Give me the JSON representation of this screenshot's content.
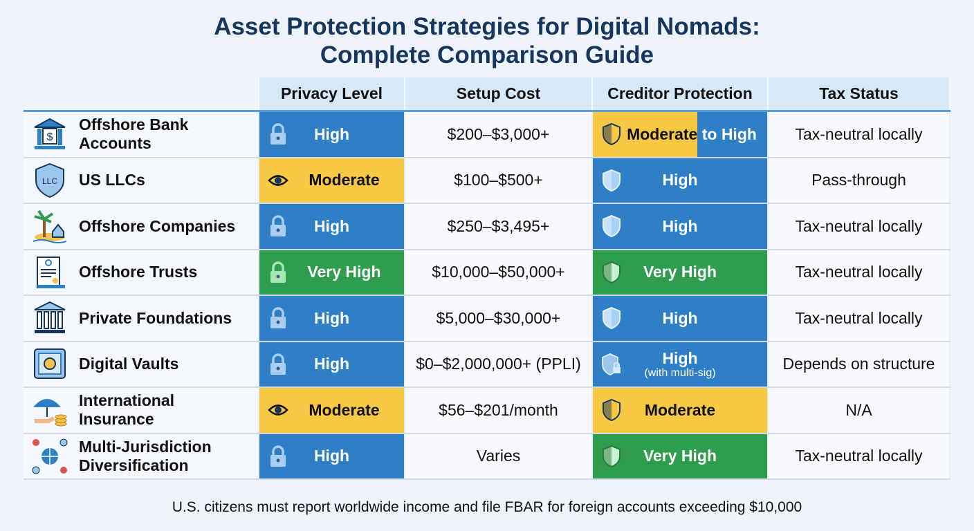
{
  "title_line1": "Asset Protection Strategies for Digital Nomads:",
  "title_line2": "Complete Comparison Guide",
  "headers": [
    "Privacy Level",
    "Setup Cost",
    "Creditor Protection",
    "Tax Status"
  ],
  "colors": {
    "blue": "#2e7fc5",
    "yellow": "#f7c843",
    "green": "#2f9d4e",
    "title": "#17365d"
  },
  "rows": [
    {
      "name": "Offshore Bank Accounts",
      "icon": "bank-icon",
      "privacy": "High",
      "privacy_color": "blue",
      "privacy_icon": "lock-icon",
      "cost": "$200–$3,000+",
      "creditor_a": "Moderate",
      "creditor_b": "to High",
      "creditor_color": "split",
      "creditor_icon": "shield-icon",
      "tax": "Tax-neutral locally"
    },
    {
      "name": "US LLCs",
      "icon": "llc-shield-icon",
      "privacy": "Moderate",
      "privacy_color": "yellow",
      "privacy_icon": "eye-icon",
      "cost": "$100–$500+",
      "creditor_a": "High",
      "creditor_color": "blue",
      "creditor_icon": "shield-icon",
      "tax": "Pass-through"
    },
    {
      "name": "Offshore Companies",
      "icon": "island-icon",
      "privacy": "High",
      "privacy_color": "blue",
      "privacy_icon": "lock-icon",
      "cost": "$250–$3,495+",
      "creditor_a": "High",
      "creditor_color": "blue",
      "creditor_icon": "shield-icon",
      "tax": "Tax-neutral locally"
    },
    {
      "name": "Offshore Trusts",
      "icon": "document-scroll-icon",
      "privacy": "Very High",
      "privacy_color": "green",
      "privacy_icon": "lock-icon",
      "cost": "$10,000–$50,000+",
      "creditor_a": "Very High",
      "creditor_color": "green",
      "creditor_icon": "shield-icon",
      "tax": "Tax-neutral locally"
    },
    {
      "name": "Private Foundations",
      "icon": "institution-icon",
      "privacy": "High",
      "privacy_color": "blue",
      "privacy_icon": "lock-icon",
      "cost": "$5,000–$30,000+",
      "creditor_a": "High",
      "creditor_color": "blue",
      "creditor_icon": "shield-icon",
      "tax": "Tax-neutral locally"
    },
    {
      "name": "Digital Vaults",
      "icon": "vault-icon",
      "privacy": "High",
      "privacy_color": "blue",
      "privacy_icon": "lock-icon",
      "cost": "$0–$2,000,000+ (PPLI)",
      "creditor_a": "High",
      "creditor_sub": "(with multi-sig)",
      "creditor_color": "blue",
      "creditor_icon": "shield-lock-icon",
      "tax": "Depends on structure"
    },
    {
      "name": "International Insurance",
      "icon": "umbrella-coins-icon",
      "privacy": "Moderate",
      "privacy_color": "yellow",
      "privacy_icon": "eye-icon",
      "cost": "$56–$201/month",
      "creditor_a": "Moderate",
      "creditor_color": "yellow",
      "creditor_icon": "shield-icon",
      "tax": "N/A"
    },
    {
      "name": "Multi-Jurisdiction Diversification",
      "icon": "globe-flags-icon",
      "privacy": "High",
      "privacy_color": "blue",
      "privacy_icon": "lock-icon",
      "cost": "Varies",
      "creditor_a": "Very High",
      "creditor_color": "green",
      "creditor_icon": "shield-icon",
      "tax": "Tax-neutral locally"
    }
  ],
  "footer": "U.S. citizens must report worldwide income and file FBAR for foreign accounts exceeding $10,000"
}
